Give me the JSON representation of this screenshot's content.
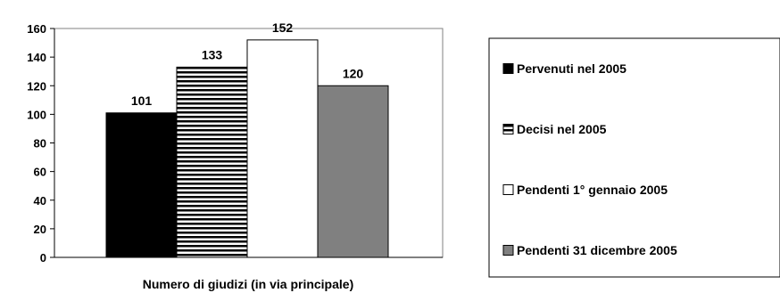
{
  "chart_data": {
    "type": "bar",
    "title": "",
    "xlabel": "Numero di giudizi (in via principale)",
    "ylabel": "",
    "ylim": [
      0,
      160
    ],
    "yticks": [
      0,
      20,
      40,
      60,
      80,
      100,
      120,
      140,
      160
    ],
    "grid": false,
    "legend_position": "right",
    "series": [
      {
        "name": "Pervenuti nel 2005",
        "value": 101,
        "pattern": "solid",
        "color": "#000000"
      },
      {
        "name": "Decisi nel 2005",
        "value": 133,
        "pattern": "horizontal-stripes",
        "color": "#000000"
      },
      {
        "name": "Pendenti 1° gennaio 2005",
        "value": 152,
        "pattern": "solid",
        "color": "#ffffff"
      },
      {
        "name": "Pendenti 31 dicembre 2005",
        "value": 120,
        "pattern": "solid",
        "color": "#808080"
      }
    ]
  }
}
